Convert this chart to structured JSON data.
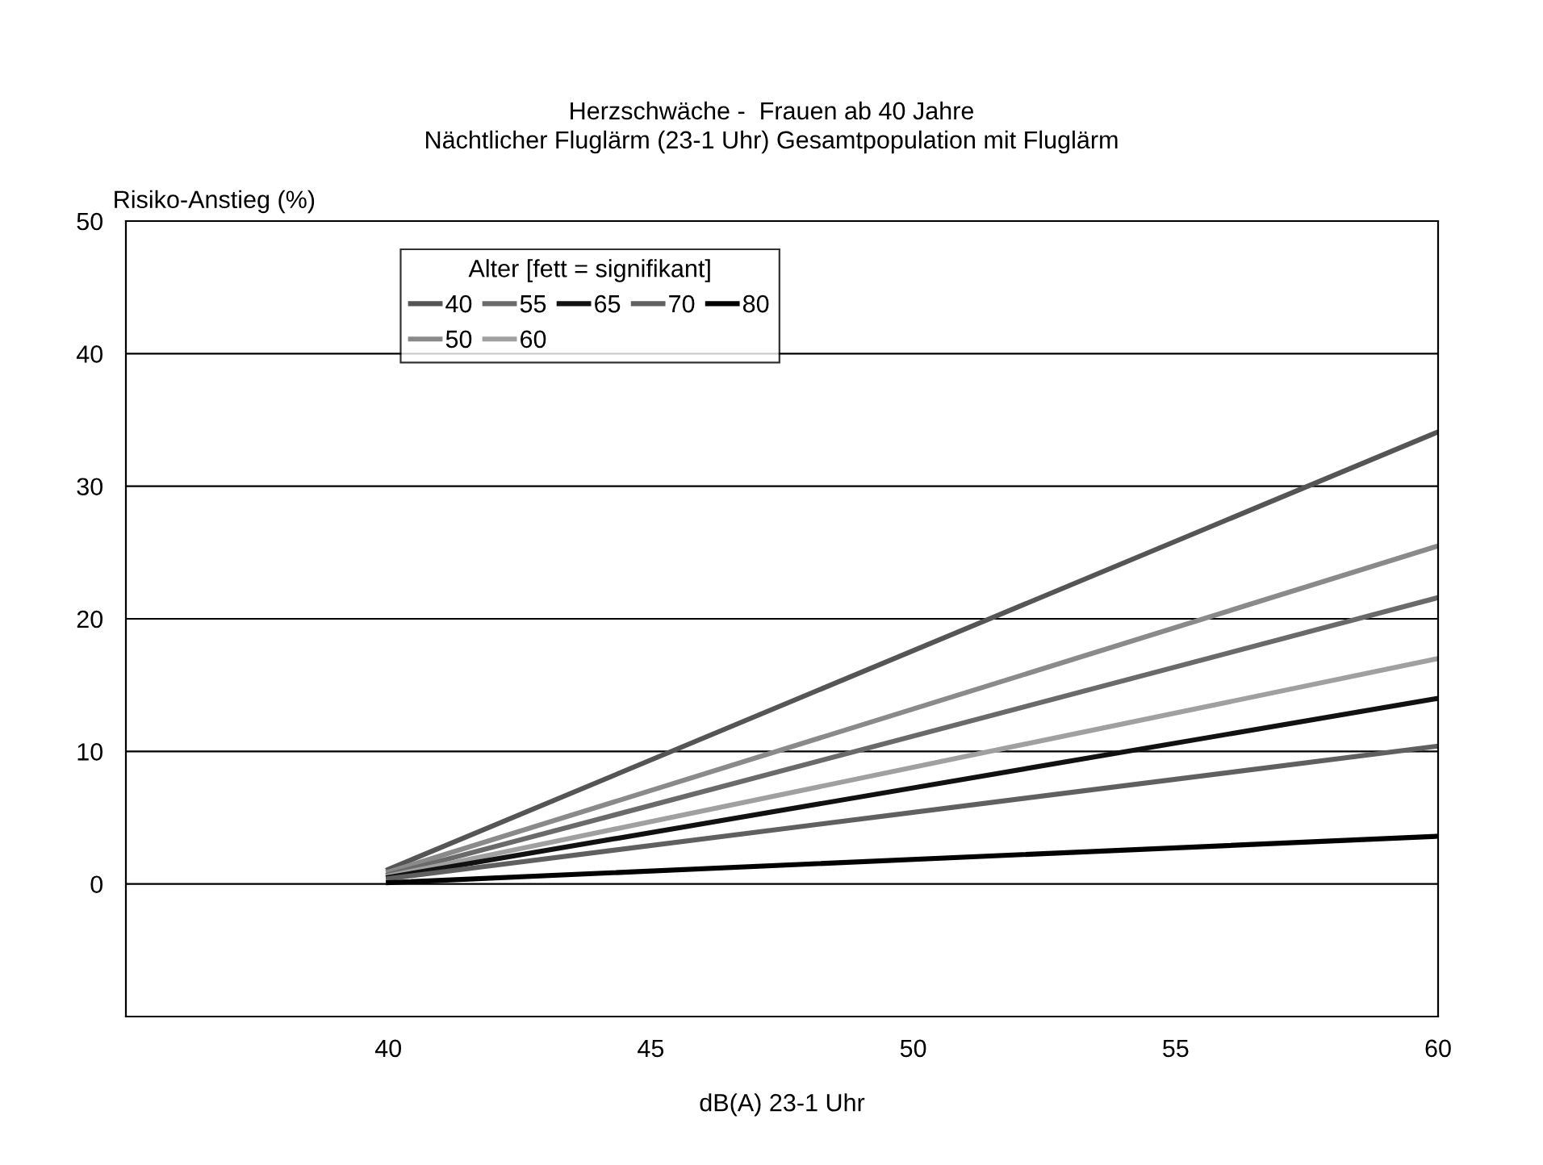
{
  "chart_data": {
    "type": "line",
    "title": "Herzschwäche -  Frauen ab 40 Jahre",
    "subtitle": "Nächtlicher Fluglärm (23-1 Uhr) Gesamtpopulation mit Fluglärm",
    "xlabel": "dB(A) 23-1 Uhr",
    "ylabel": "Risiko-Anstieg (%)",
    "legend_title": "Alter [fett = signifikant]",
    "x": [
      40,
      60
    ],
    "series": [
      {
        "name": "40",
        "color": "#555555",
        "values": [
          1.1,
          34.1
        ]
      },
      {
        "name": "50",
        "color": "#8a8a8a",
        "values": [
          0.9,
          25.5
        ]
      },
      {
        "name": "55",
        "color": "#6a6a6a",
        "values": [
          0.7,
          21.6
        ]
      },
      {
        "name": "60",
        "color": "#a0a0a0",
        "values": [
          0.6,
          17
        ]
      },
      {
        "name": "65",
        "color": "#111111",
        "values": [
          0.5,
          14
        ]
      },
      {
        "name": "70",
        "color": "#606060",
        "values": [
          0.4,
          10.4
        ]
      },
      {
        "name": "80",
        "color": "#000000",
        "values": [
          0.1,
          3.6
        ]
      }
    ],
    "xlim": [
      35,
      60
    ],
    "xticks": [
      40,
      45,
      50,
      55,
      60
    ],
    "ylim": [
      -10,
      50
    ],
    "yticks": [
      0,
      10,
      20,
      30,
      40,
      50
    ],
    "grid": "y",
    "legend": "top left",
    "marker": "none",
    "line_style": "solid"
  }
}
